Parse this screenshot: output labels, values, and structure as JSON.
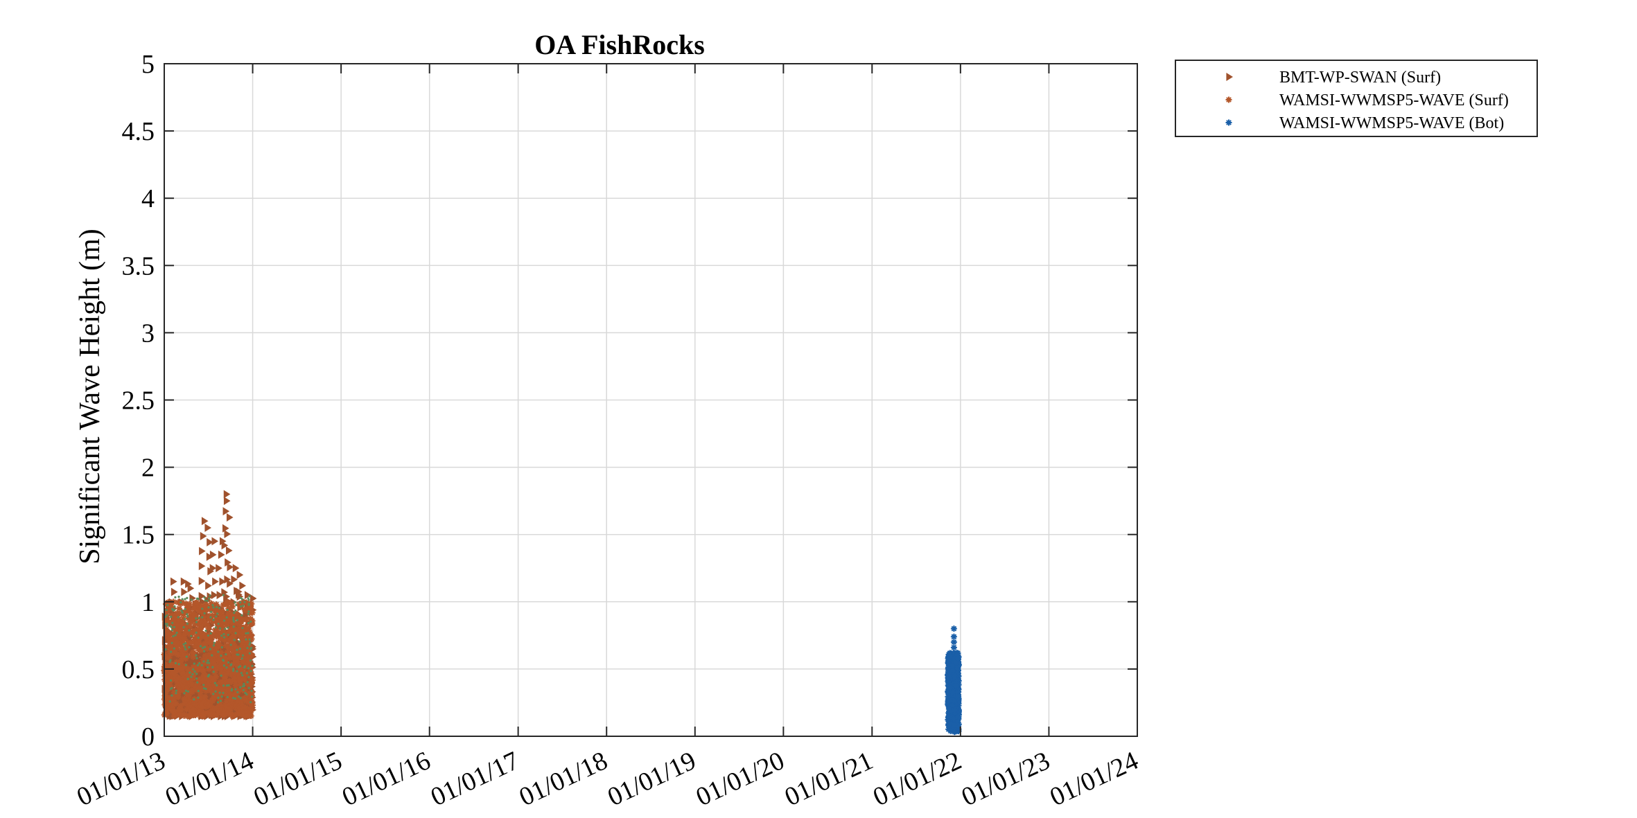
{
  "chart_data": {
    "type": "scatter",
    "title": "OA FishRocks",
    "xlabel": "",
    "ylabel": "Significant Wave Height (m)",
    "x_ticks": [
      "01/01/13",
      "01/01/14",
      "01/01/15",
      "01/01/16",
      "01/01/17",
      "01/01/18",
      "01/01/19",
      "01/01/20",
      "01/01/21",
      "01/01/22",
      "01/01/23",
      "01/01/24"
    ],
    "xlim": [
      "2013-01-01",
      "2024-01-01"
    ],
    "ylim": [
      0,
      5
    ],
    "y_ticks": [
      "0",
      "0.5",
      "1",
      "1.5",
      "2",
      "2.5",
      "3",
      "3.5",
      "4",
      "4.5",
      "5"
    ],
    "grid": true,
    "legend_position": "outside-top-right",
    "series": [
      {
        "name": "BMT-WP-SWAN (Surf)",
        "marker": "triangle-right",
        "color": "#a0522d",
        "x_range": [
          "2013-01-01",
          "2014-01-01"
        ],
        "y_min": 0.15,
        "y_typical_max": 1.15,
        "y_peaks": [
          {
            "x": "2013-07-01",
            "y": 1.6
          },
          {
            "x": "2013-09-15",
            "y": 1.8
          }
        ]
      },
      {
        "name": "WAMSI-WWMSP5-WAVE (Surf)",
        "marker": "asterisk",
        "color": "#b4572a",
        "x_range": [
          "2013-01-01",
          "2014-01-01"
        ],
        "y_min": 0.15,
        "y_typical_max": 1.0
      },
      {
        "name": "WAMSI-WWMSP5-WAVE (Bot)",
        "marker": "asterisk",
        "color": "#1a5fa8",
        "x_range": [
          "2021-11-10",
          "2021-12-25"
        ],
        "y_min": 0.03,
        "y_max": 0.8
      }
    ]
  }
}
